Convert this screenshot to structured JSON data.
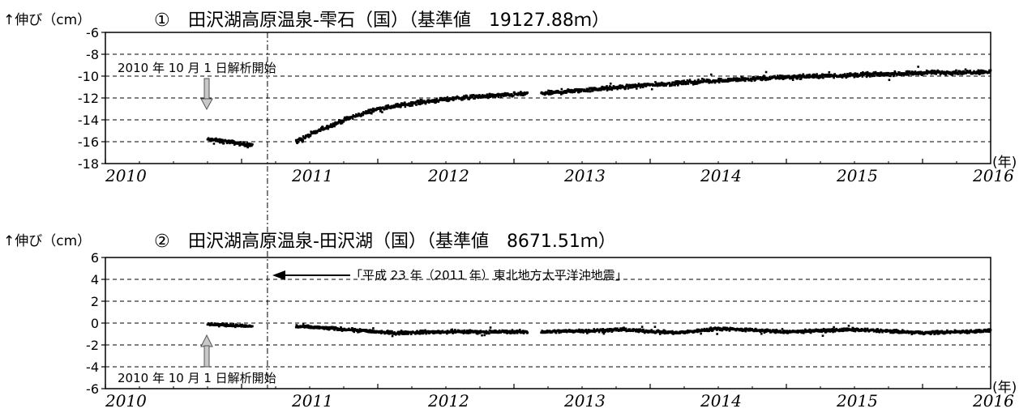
{
  "charts": [
    {
      "type": "scatter",
      "number": "①",
      "title": "田沢湖高原温泉-雫石（国）（基準値　19127.88ｍ）",
      "ylabel": "↑伸び（cm）",
      "xunit": "(年)",
      "xlim": [
        2010,
        2016.5
      ],
      "ylim": [
        -18,
        -6
      ],
      "yticks": [
        "-6",
        "-8",
        "-10",
        "-12",
        "-14",
        "-16",
        "-18"
      ],
      "xticks": [
        "2010",
        "2011",
        "2012",
        "2013",
        "2014",
        "2015",
        "2016"
      ],
      "grid": "dashed horizontal",
      "annotation": "2010 年 10 月 1 日解析開始",
      "annotation_x": 2010.75,
      "segments": [
        {
          "x_start": 2010.75,
          "x_end": 2011.08,
          "y_points": [
            [
              2010.75,
              -15.8
            ],
            [
              2010.9,
              -16.0
            ],
            [
              2011.0,
              -16.2
            ],
            [
              2011.08,
              -16.3
            ]
          ],
          "noise": 0.45
        },
        {
          "x_start": 2011.4,
          "x_end": 2013.1,
          "y_points": [
            [
              2011.4,
              -16.0
            ],
            [
              2011.6,
              -14.8
            ],
            [
              2011.8,
              -13.8
            ],
            [
              2012.0,
              -13.0
            ],
            [
              2012.3,
              -12.4
            ],
            [
              2012.6,
              -12.0
            ],
            [
              2013.1,
              -11.6
            ]
          ],
          "noise": 0.5
        },
        {
          "x_start": 2013.2,
          "x_end": 2016.5,
          "y_points": [
            [
              2013.2,
              -11.6
            ],
            [
              2013.6,
              -11.2
            ],
            [
              2014.0,
              -10.8
            ],
            [
              2014.5,
              -10.4
            ],
            [
              2015.0,
              -10.1
            ],
            [
              2015.5,
              -9.9
            ],
            [
              2016.0,
              -9.7
            ],
            [
              2016.5,
              -9.6
            ]
          ],
          "noise": 0.5
        }
      ]
    },
    {
      "type": "scatter",
      "number": "②",
      "title": "田沢湖高原温泉-田沢湖（国）（基準値　8671.51ｍ）",
      "ylabel": "↑伸び（cm）",
      "xunit": "(年)",
      "xlim": [
        2010,
        2016.5
      ],
      "ylim": [
        -6,
        6
      ],
      "yticks": [
        "6",
        "4",
        "2",
        "0",
        "-2",
        "-4",
        "-6"
      ],
      "xticks": [
        "2010",
        "2011",
        "2012",
        "2013",
        "2014",
        "2015",
        "2016"
      ],
      "grid": "dashed horizontal",
      "annotation": "2010 年 10 月 1 日解析開始",
      "annotation_x": 2010.75,
      "earthquake_label": "「平成 23 年（2011 年）東北地方太平洋沖地震」",
      "segments": [
        {
          "x_start": 2010.75,
          "x_end": 2011.08,
          "y_points": [
            [
              2010.75,
              -0.1
            ],
            [
              2011.08,
              -0.3
            ]
          ],
          "noise": 0.35
        },
        {
          "x_start": 2011.4,
          "x_end": 2013.1,
          "y_points": [
            [
              2011.4,
              -0.3
            ],
            [
              2011.8,
              -0.6
            ],
            [
              2012.1,
              -0.9
            ],
            [
              2012.5,
              -0.8
            ],
            [
              2013.1,
              -0.8
            ]
          ],
          "noise": 0.4
        },
        {
          "x_start": 2013.2,
          "x_end": 2016.5,
          "y_points": [
            [
              2013.2,
              -0.8
            ],
            [
              2013.8,
              -0.6
            ],
            [
              2014.2,
              -0.9
            ],
            [
              2014.5,
              -0.5
            ],
            [
              2015.0,
              -0.8
            ],
            [
              2015.5,
              -0.6
            ],
            [
              2016.0,
              -0.9
            ],
            [
              2016.5,
              -0.7
            ]
          ],
          "noise": 0.4
        }
      ]
    }
  ],
  "earthquake_x": 2011.19
}
